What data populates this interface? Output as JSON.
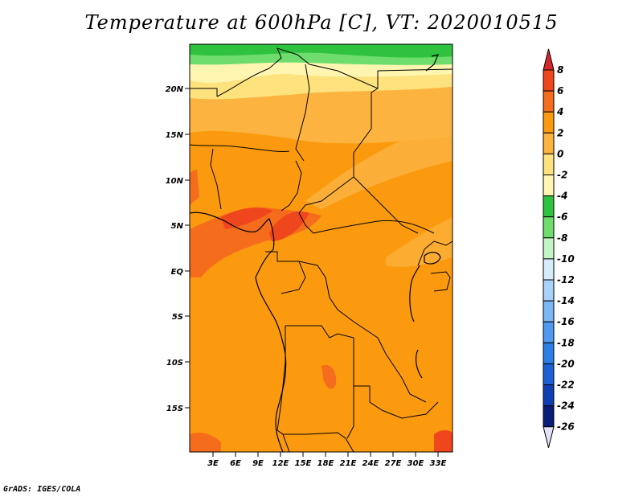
{
  "title": "Temperature at 600hPa [C], VT: 2020010515",
  "credit": "GrADS: IGES/COLA",
  "map": {
    "lat_labels": [
      "20N",
      "15N",
      "10N",
      "5N",
      "EQ",
      "5S",
      "10S",
      "15S"
    ],
    "lon_labels": [
      "3E",
      "6E",
      "9E",
      "12E",
      "15E",
      "18E",
      "21E",
      "24E",
      "27E",
      "30E",
      "33E"
    ]
  },
  "colorbar": {
    "levels": [
      "8",
      "6",
      "4",
      "2",
      "0",
      "-2",
      "-4",
      "-6",
      "-8",
      "-10",
      "-12",
      "-14",
      "-16",
      "-18",
      "-20",
      "-22",
      "-24",
      "-26"
    ],
    "colors": [
      "#d7262b",
      "#f0461d",
      "#f56d1c",
      "#fb9a0e",
      "#fcb33f",
      "#fde27d",
      "#fef6b0",
      "#2fc23e",
      "#6edd6e",
      "#c4f4c4",
      "#d5ecfc",
      "#a8d2f9",
      "#7bb7f4",
      "#4f9af0",
      "#2b7ee8",
      "#1b60d4",
      "#0f3fb5",
      "#0a1c7a",
      "#e2e3f9"
    ]
  },
  "colors": {
    "base_field": "#fb9a0e",
    "warm_band": "#f56d1c",
    "hot_spot": "#f0461d",
    "mild_band": "#fcb33f",
    "cool_band": "#fde27d",
    "cold_band": "#fef6b0",
    "green_band": "#2fc23e",
    "light_green": "#6edd6e"
  }
}
